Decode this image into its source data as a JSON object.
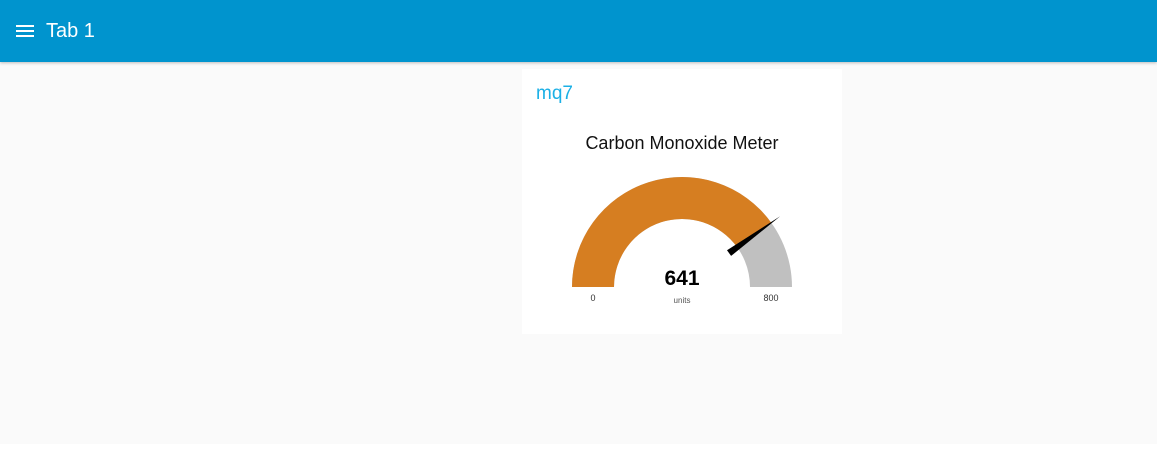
{
  "toolbar": {
    "title": "Tab 1",
    "menu_icon": "hamburger-menu-icon",
    "background_color": "#0094ce"
  },
  "group": {
    "title": "mq7",
    "title_color": "#1bb0e6"
  },
  "gauge": {
    "title": "Carbon Monoxide Meter",
    "value": 641,
    "value_label": "641",
    "units": "units",
    "min": 0,
    "max": 800,
    "min_label": "0",
    "max_label": "800",
    "fill_color": "#d67e21",
    "track_color": "#c0c0c0",
    "needle_color": "#000000"
  }
}
